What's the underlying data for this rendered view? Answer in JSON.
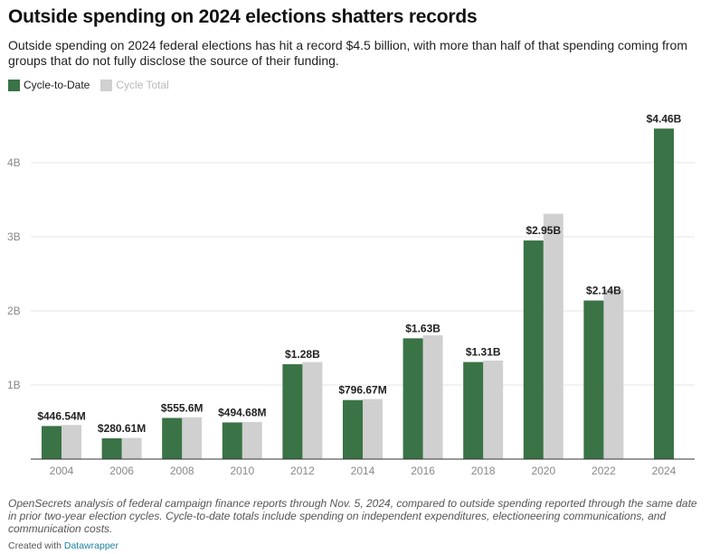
{
  "title": "Outside spending on 2024 elections shatters records",
  "subtitle": "Outside spending on 2024 federal elections has hit a record $4.5 billion, with more than half of that spending coming from groups that do not fully disclose the source of their funding.",
  "legend": [
    {
      "label": "Cycle-to-Date",
      "color": "#3a7346"
    },
    {
      "label": "Cycle Total",
      "color": "#d0d0d0"
    }
  ],
  "notes": "OpenSecrets analysis of federal campaign finance reports through Nov. 5, 2024, compared to outside spending reported through the same date in prior two-year election cycles. Cycle-to-date totals include spending on independent expenditures, electioneering communications, and communication costs.",
  "credit": {
    "prefix": "Created with ",
    "link": "Datawrapper"
  },
  "chart_data": {
    "type": "bar",
    "categories": [
      "2004",
      "2006",
      "2008",
      "2010",
      "2012",
      "2014",
      "2016",
      "2018",
      "2020",
      "2022",
      "2024"
    ],
    "series": [
      {
        "name": "Cycle-to-Date",
        "color": "#3a7346",
        "values": [
          446540000,
          280610000,
          555600000,
          494680000,
          1280000000,
          796670000,
          1630000000,
          1310000000,
          2950000000,
          2140000000,
          4460000000
        ]
      },
      {
        "name": "Cycle Total",
        "color": "#d0d0d0",
        "values": [
          460000000,
          285000000,
          565000000,
          500000000,
          1310000000,
          810000000,
          1670000000,
          1330000000,
          3310000000,
          2290000000,
          null
        ]
      }
    ],
    "data_labels": [
      "$446.54M",
      "$280.61M",
      "$555.6M",
      "$494.68M",
      "$1.28B",
      "$796.67M",
      "$1.63B",
      "$1.31B",
      "$2.95B",
      "$2.14B",
      "$4.46B"
    ],
    "yticks": [
      1000000000,
      2000000000,
      3000000000,
      4000000000
    ],
    "ytick_labels": [
      "1B",
      "2B",
      "3B",
      "4B"
    ],
    "ylim": [
      0,
      4500000000
    ],
    "grid": true,
    "legend_position": "top-left"
  }
}
